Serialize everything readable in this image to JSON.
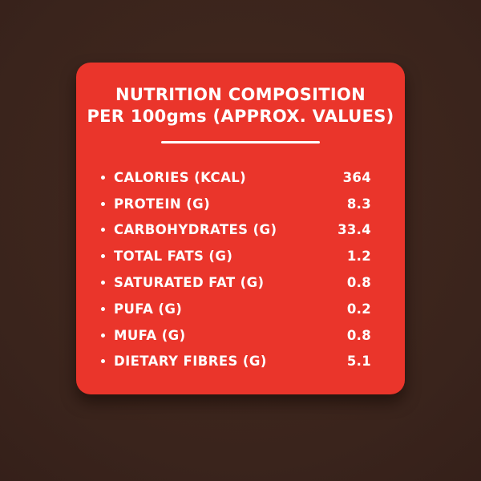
{
  "card": {
    "title_line1": "NUTRITION COMPOSITION",
    "title_line2": "PER 100gms (APPROX. VALUES)",
    "rows": [
      {
        "label": "CALORIES (KCAL)",
        "value": "364"
      },
      {
        "label": "PROTEIN (G)",
        "value": "8.3"
      },
      {
        "label": "CARBOHYDRATES (G)",
        "value": "33.4"
      },
      {
        "label": "TOTAL FATS (G)",
        "value": "1.2"
      },
      {
        "label": "SATURATED FAT (G)",
        "value": "0.8"
      },
      {
        "label": "PUFA (G)",
        "value": "0.2"
      },
      {
        "label": "MUFA (G)",
        "value": "0.8"
      },
      {
        "label": "DIETARY FIBRES (G)",
        "value": "5.1"
      }
    ],
    "colors": {
      "card_background": "#ea352b",
      "page_background": "#3a241c",
      "text": "#ffffff"
    }
  }
}
